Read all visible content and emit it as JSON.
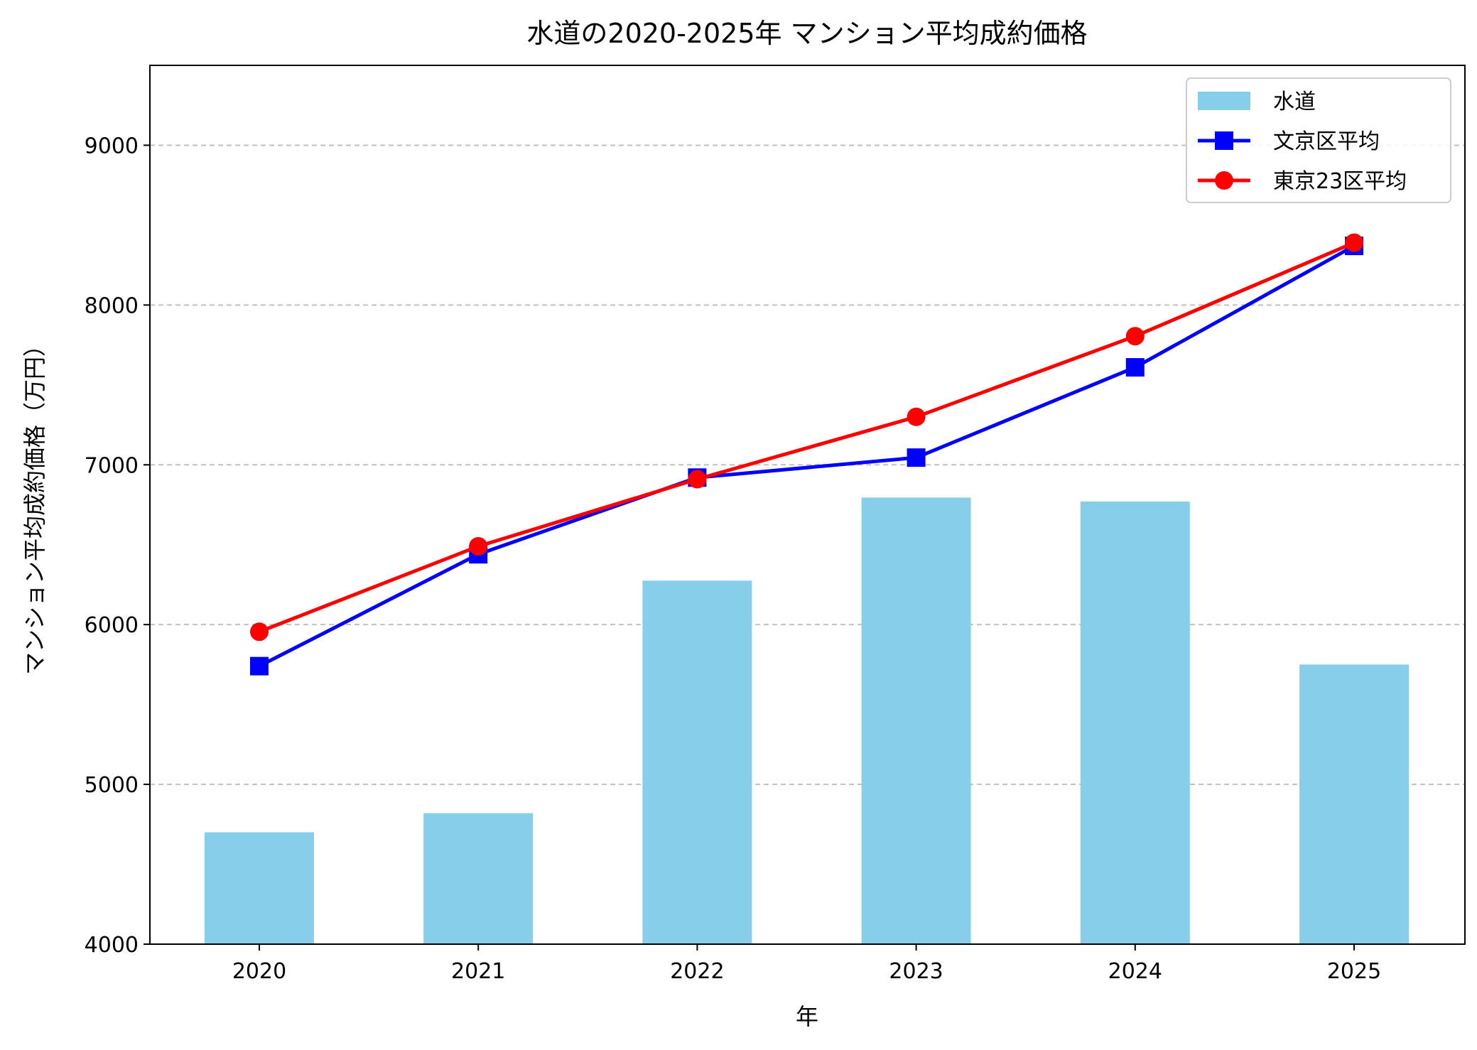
{
  "chart_data": {
    "type": "bar+line",
    "title": "水道の2020-2025年 マンション平均成約価格",
    "xlabel": "年",
    "ylabel": "マンション平均成約価格（万円）",
    "categories": [
      "2020",
      "2021",
      "2022",
      "2023",
      "2024",
      "2025"
    ],
    "ylim": [
      4000,
      9500
    ],
    "yticks": [
      4000,
      5000,
      6000,
      7000,
      8000,
      9000
    ],
    "grid": "y dashed",
    "legend_position": "top-right",
    "series": [
      {
        "name": "水道",
        "kind": "bar",
        "color": "#87CEEB",
        "values": [
          4700,
          4820,
          6275,
          6795,
          6770,
          5750
        ]
      },
      {
        "name": "文京区平均",
        "kind": "line",
        "marker": "square",
        "color": "#0000FF",
        "values": [
          5740,
          6440,
          6920,
          7045,
          7610,
          8370
        ]
      },
      {
        "name": "東京23区平均",
        "kind": "line",
        "marker": "circle",
        "color": "#FF0000",
        "values": [
          5955,
          6490,
          6910,
          7300,
          7805,
          8390
        ]
      }
    ]
  }
}
